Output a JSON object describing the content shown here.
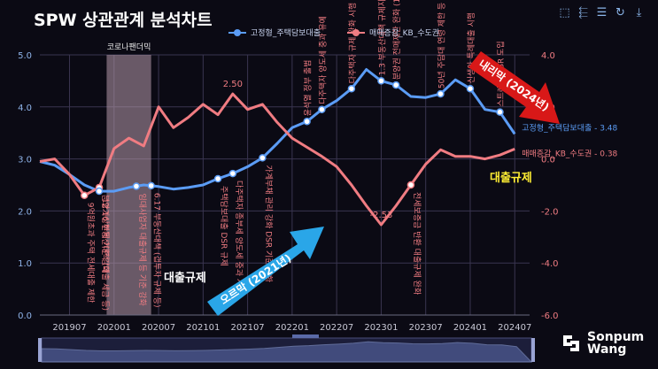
{
  "page": {
    "title": "SPW 상관관계 분석차트"
  },
  "toolbar": {
    "icons": [
      "zoom-select-icon",
      "zoom-reset-icon",
      "data-view-icon",
      "refresh-icon",
      "save-image-icon"
    ]
  },
  "brand": {
    "line1": "Sonpum",
    "line2": "Wang"
  },
  "chart_data": {
    "type": "line",
    "x_ticks": [
      "201907",
      "202001",
      "202007",
      "202101",
      "202107",
      "202201",
      "202207",
      "202301",
      "202307",
      "202401",
      "202407"
    ],
    "x_range": [
      "2019-03",
      "2024-09"
    ],
    "y_left": {
      "range": [
        0,
        5
      ],
      "ticks": [
        "0.0",
        "1.0",
        "2.0",
        "3.0",
        "4.0",
        "5.0"
      ]
    },
    "y_right": {
      "range": [
        -6,
        4
      ],
      "ticks": [
        "-6.0",
        "-4.0",
        "-2.0",
        "0.0",
        "2.0",
        "4.0"
      ]
    },
    "grid": true,
    "legend": {
      "position": "top-center",
      "entries": [
        "고정형_주택담보대출",
        "매매증감_KB_수도권"
      ]
    },
    "series": [
      {
        "name": "고정형_주택담보대출",
        "axis": "left",
        "color": "#5b9cf5",
        "end_label": "고정형_주택담보대출 - 3.48",
        "data": [
          [
            "2019-03",
            2.95
          ],
          [
            "2019-05",
            2.88
          ],
          [
            "2019-07",
            2.7
          ],
          [
            "2019-09",
            2.5
          ],
          [
            "2019-11",
            2.38
          ],
          [
            "2020-01",
            2.38
          ],
          [
            "2020-03",
            2.45
          ],
          [
            "2020-05",
            2.5
          ],
          [
            "2020-07",
            2.47
          ],
          [
            "2020-09",
            2.42
          ],
          [
            "2020-11",
            2.45
          ],
          [
            "2021-01",
            2.5
          ],
          [
            "2021-03",
            2.62
          ],
          [
            "2021-05",
            2.72
          ],
          [
            "2021-07",
            2.85
          ],
          [
            "2021-09",
            3.02
          ],
          [
            "2021-11",
            3.3
          ],
          [
            "2022-01",
            3.6
          ],
          [
            "2022-03",
            3.72
          ],
          [
            "2022-05",
            3.95
          ],
          [
            "2022-07",
            4.12
          ],
          [
            "2022-09",
            4.35
          ],
          [
            "2022-11",
            4.72
          ],
          [
            "2023-01",
            4.5
          ],
          [
            "2023-03",
            4.42
          ],
          [
            "2023-05",
            4.2
          ],
          [
            "2023-07",
            4.18
          ],
          [
            "2023-09",
            4.25
          ],
          [
            "2023-11",
            4.52
          ],
          [
            "2024-01",
            4.35
          ],
          [
            "2024-03",
            3.95
          ],
          [
            "2024-05",
            3.9
          ],
          [
            "2024-07",
            3.48
          ]
        ]
      },
      {
        "name": "매매증감_KB_수도권",
        "axis": "right",
        "color": "#f07c82",
        "end_label": "매매증감_KB_수도권 - 0.38",
        "data": [
          [
            "2019-03",
            -0.1
          ],
          [
            "2019-05",
            0.0
          ],
          [
            "2019-07",
            -0.6
          ],
          [
            "2019-09",
            -1.4
          ],
          [
            "2019-11",
            -1.1
          ],
          [
            "2020-01",
            0.4
          ],
          [
            "2020-03",
            0.8
          ],
          [
            "2020-05",
            0.5
          ],
          [
            "2020-07",
            2.0
          ],
          [
            "2020-09",
            1.2
          ],
          [
            "2020-11",
            1.6
          ],
          [
            "2021-01",
            2.1
          ],
          [
            "2021-03",
            1.7
          ],
          [
            "2021-05",
            2.5
          ],
          [
            "2021-07",
            1.9
          ],
          [
            "2021-09",
            2.1
          ],
          [
            "2021-11",
            1.4
          ],
          [
            "2022-01",
            0.8
          ],
          [
            "2022-03",
            0.45
          ],
          [
            "2022-05",
            0.1
          ],
          [
            "2022-07",
            -0.3
          ],
          [
            "2022-09",
            -1.0
          ],
          [
            "2022-11",
            -1.8
          ],
          [
            "2023-01",
            -2.53
          ],
          [
            "2023-03",
            -1.8
          ],
          [
            "2023-05",
            -1.0
          ],
          [
            "2023-07",
            -0.2
          ],
          [
            "2023-09",
            0.35
          ],
          [
            "2023-11",
            0.1
          ],
          [
            "2024-01",
            0.1
          ],
          [
            "2024-03",
            0.0
          ],
          [
            "2024-05",
            0.15
          ],
          [
            "2024-07",
            0.38
          ]
        ]
      }
    ],
    "data_labels": [
      {
        "series": 1,
        "x": "2021-05",
        "text": "2.50"
      },
      {
        "series": 1,
        "x": "2023-01",
        "text": "-2.53"
      }
    ],
    "shaded_period": {
      "from": "2019-12",
      "to": "2020-06",
      "label": "코로나팬더믹"
    },
    "event_markers": [
      {
        "series": 1,
        "x": "2019-09",
        "text": "9억원초과 주택 전세대출 제한"
      },
      {
        "series": 1,
        "x": "2019-11",
        "text": "분양가상한제 기준 강화"
      },
      {
        "series": 0,
        "x": "2019-11",
        "text": "12.16 부동산대책 (대출 세금 등)"
      },
      {
        "series": 0,
        "x": "2020-04",
        "text": "임대사업자 대출규제 등 기준 강화"
      },
      {
        "series": 0,
        "x": "2020-06",
        "text": "6.17 부동산대책 (갭투자 규제 등)"
      },
      {
        "series": 0,
        "x": "2021-03",
        "text": "주택담보대출 DSR 규제"
      },
      {
        "series": 0,
        "x": "2021-05",
        "text": "다주택자 종부세 양도세 중과 시행"
      },
      {
        "series": 0,
        "x": "2021-09",
        "text": "가계부채 관리 강화 DSR 기준 강화"
      },
      {
        "series": 0,
        "x": "2022-03",
        "text": "윤석열 정부 출범"
      },
      {
        "series": 0,
        "x": "2022-05",
        "text": "다주택자 양도세 중과 유예"
      },
      {
        "series": 0,
        "x": "2022-09",
        "text": "다주택자 규제 완화 시행"
      },
      {
        "series": 0,
        "x": "2023-01",
        "text": "1.3 부동산대책 규제지역 해제"
      },
      {
        "series": 0,
        "x": "2023-03",
        "text": "분양권 전매제한 완화 (10)"
      },
      {
        "series": 1,
        "x": "2023-05",
        "text": "전세보증금 반환 대출규제 완화"
      },
      {
        "series": 0,
        "x": "2023-09",
        "text": "50년 주담대 연령 제한 등"
      },
      {
        "series": 0,
        "x": "2024-01",
        "text": "신생아 특례대출 시행"
      },
      {
        "series": 0,
        "x": "2024-05",
        "text": "스트레스 DSR 도입"
      }
    ],
    "annotations": [
      {
        "text": "대출규제",
        "color": "#ffffff",
        "at": [
          "2020-10",
          1.0
        ]
      },
      {
        "text": "대출규제",
        "color": "#ffee33",
        "at": [
          "2024-06",
          2.7
        ]
      },
      {
        "text": "오르막 (2021년)",
        "color": "#ffffff",
        "arrow_color": "#2aa6e8"
      },
      {
        "text": "내리막 (2024년)",
        "color": "#ffffff",
        "arrow_color": "#d81818"
      }
    ]
  }
}
